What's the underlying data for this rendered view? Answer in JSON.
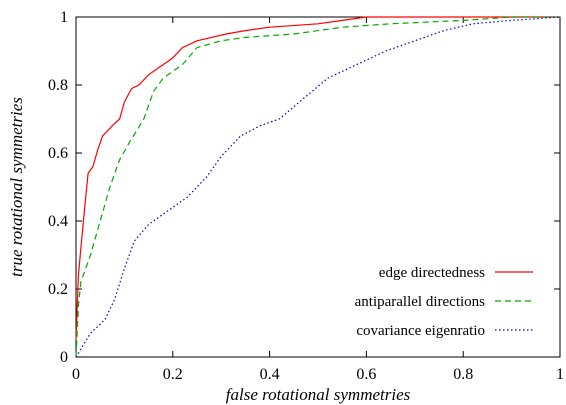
{
  "chart_data": {
    "type": "line",
    "xlabel": "false rotational symmetries",
    "ylabel": "true rotational symmetries",
    "xlim": [
      0,
      1
    ],
    "ylim": [
      0,
      1
    ],
    "xticks": [
      "0",
      "0.2",
      "0.4",
      "0.6",
      "0.8",
      "1"
    ],
    "yticks": [
      "0",
      "0.2",
      "0.4",
      "0.6",
      "0.8",
      "1"
    ],
    "grid": false,
    "legend_position": "bottom-right",
    "series": [
      {
        "name": "edge directedness",
        "color": "#ff0000",
        "dash": "solid",
        "points": [
          [
            0,
            0.05
          ],
          [
            0.005,
            0.24
          ],
          [
            0.012,
            0.35
          ],
          [
            0.02,
            0.47
          ],
          [
            0.025,
            0.54
          ],
          [
            0.035,
            0.56
          ],
          [
            0.045,
            0.61
          ],
          [
            0.055,
            0.65
          ],
          [
            0.075,
            0.68
          ],
          [
            0.09,
            0.7
          ],
          [
            0.1,
            0.75
          ],
          [
            0.115,
            0.79
          ],
          [
            0.13,
            0.8
          ],
          [
            0.15,
            0.83
          ],
          [
            0.17,
            0.85
          ],
          [
            0.19,
            0.87
          ],
          [
            0.2,
            0.88
          ],
          [
            0.22,
            0.91
          ],
          [
            0.25,
            0.93
          ],
          [
            0.28,
            0.94
          ],
          [
            0.31,
            0.95
          ],
          [
            0.35,
            0.96
          ],
          [
            0.4,
            0.97
          ],
          [
            0.5,
            0.98
          ],
          [
            0.55,
            0.99
          ],
          [
            0.6,
            1.0
          ],
          [
            1.0,
            1.0
          ]
        ]
      },
      {
        "name": "antiparallel directions",
        "color": "#00aa00",
        "dash": "dashed",
        "points": [
          [
            0,
            0.0
          ],
          [
            0.005,
            0.15
          ],
          [
            0.01,
            0.22
          ],
          [
            0.03,
            0.3
          ],
          [
            0.05,
            0.4
          ],
          [
            0.07,
            0.5
          ],
          [
            0.09,
            0.58
          ],
          [
            0.11,
            0.63
          ],
          [
            0.14,
            0.7
          ],
          [
            0.16,
            0.78
          ],
          [
            0.18,
            0.82
          ],
          [
            0.22,
            0.86
          ],
          [
            0.25,
            0.91
          ],
          [
            0.3,
            0.93
          ],
          [
            0.35,
            0.94
          ],
          [
            0.45,
            0.95
          ],
          [
            0.55,
            0.97
          ],
          [
            0.65,
            0.98
          ],
          [
            0.8,
            0.99
          ],
          [
            0.9,
            1.0
          ],
          [
            1.0,
            1.0
          ]
        ]
      },
      {
        "name": "covariance eigenratio",
        "color": "#0000cc",
        "dash": "dotted",
        "points": [
          [
            0,
            0.0
          ],
          [
            0.03,
            0.07
          ],
          [
            0.06,
            0.11
          ],
          [
            0.08,
            0.17
          ],
          [
            0.1,
            0.26
          ],
          [
            0.12,
            0.34
          ],
          [
            0.15,
            0.39
          ],
          [
            0.2,
            0.44
          ],
          [
            0.23,
            0.47
          ],
          [
            0.27,
            0.53
          ],
          [
            0.3,
            0.59
          ],
          [
            0.34,
            0.65
          ],
          [
            0.38,
            0.68
          ],
          [
            0.42,
            0.7
          ],
          [
            0.47,
            0.76
          ],
          [
            0.52,
            0.82
          ],
          [
            0.58,
            0.86
          ],
          [
            0.64,
            0.9
          ],
          [
            0.7,
            0.93
          ],
          [
            0.76,
            0.96
          ],
          [
            0.82,
            0.98
          ],
          [
            0.9,
            0.99
          ],
          [
            1.0,
            1.0
          ]
        ]
      }
    ]
  }
}
